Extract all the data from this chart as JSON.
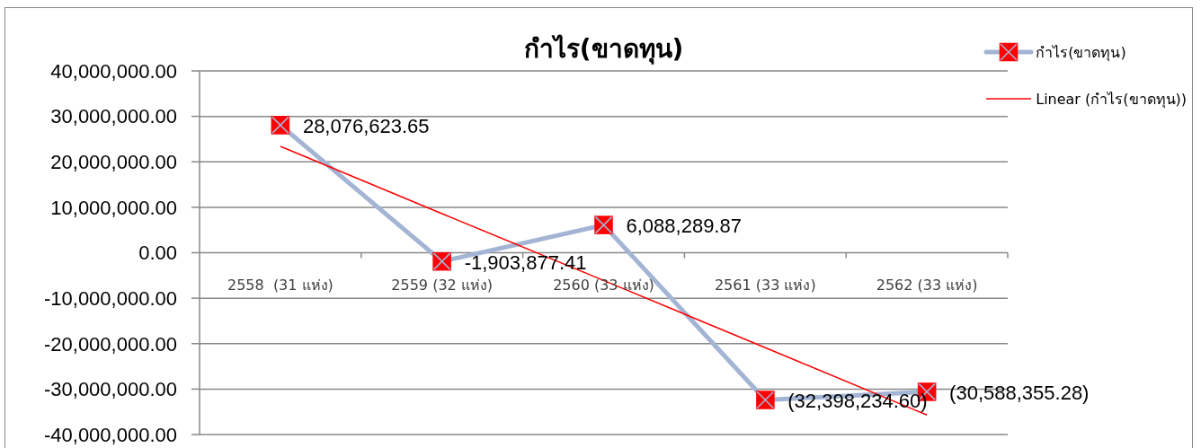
{
  "chart_data": {
    "type": "line",
    "title": "กำไร(ขาดทุน)",
    "categories": [
      "2558  (31 แห่ง)",
      "2559 (32 แห่ง)",
      "2560 (33 แห่ง)",
      "2561 (33 แห่ง)",
      "2562 (33 แห่ง)"
    ],
    "series": [
      {
        "name": "กำไร(ขาดทุน)",
        "color": "#a3b4d4",
        "colors": [
          "#ff0000",
          "#ff0000",
          "#ff0000",
          "#ff0000",
          "#ff0000"
        ],
        "marker": "square",
        "values": [
          28076623.65,
          -1903877.41,
          6088289.87,
          -32398234.6,
          -30588355.28
        ],
        "value_labels": [
          "28,076,623.65",
          "-1,903,877.41",
          "6,088,289.87",
          "(32,398,234.60)",
          "(30,588,355.28)"
        ]
      },
      {
        "name": "Linear (กำไร(ขาดทุน))",
        "type": "line",
        "color": "#ff0000",
        "marker": "none",
        "values": [
          23400000,
          8600000,
          -6100000,
          -20900000,
          -35700000
        ]
      }
    ],
    "ylim": [
      -40000000,
      40000000
    ],
    "yticks": [
      {
        "value": -40000000,
        "label": "-40,000,000.00"
      },
      {
        "value": -30000000,
        "label": "-30,000,000.00"
      },
      {
        "value": -20000000,
        "label": "-20,000,000.00"
      },
      {
        "value": -10000000,
        "label": "-10,000,000.00"
      },
      {
        "value": 0,
        "label": "0.00"
      },
      {
        "value": 10000000,
        "label": "10,000,000.00"
      },
      {
        "value": 20000000,
        "label": "20,000,000.00"
      },
      {
        "value": 30000000,
        "label": "30,000,000.00"
      },
      {
        "value": 40000000,
        "label": "40,000,000.00"
      }
    ],
    "grid": "y",
    "legend": "top right"
  }
}
